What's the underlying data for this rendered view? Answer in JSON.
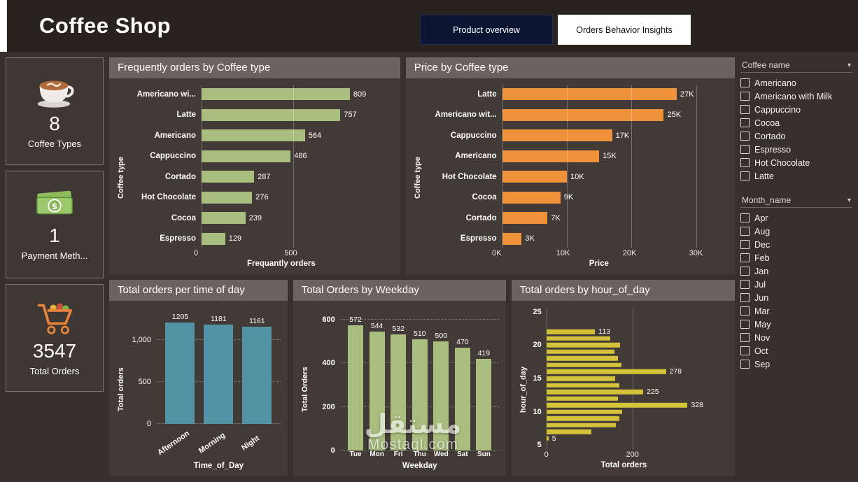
{
  "header": {
    "title": "Coffee Shop",
    "tabs": [
      {
        "label": "Product overview",
        "active": true
      },
      {
        "label": "Orders Behavior Insights",
        "active": false
      }
    ]
  },
  "kpis": [
    {
      "icon": "coffee-cup-icon",
      "value": "8",
      "label": "Coffee Types"
    },
    {
      "icon": "money-icon",
      "value": "1",
      "label": "Payment Meth..."
    },
    {
      "icon": "shopping-cart-icon",
      "value": "3547",
      "label": "Total Orders"
    }
  ],
  "chart_data": [
    {
      "type": "bar",
      "orientation": "horizontal",
      "title": "Frequently orders by Coffee type",
      "categories": [
        "Americano wi...",
        "Latte",
        "Americano",
        "Cappuccino",
        "Cortado",
        "Hot Chocolate",
        "Cocoa",
        "Espresso"
      ],
      "values": [
        809,
        757,
        564,
        486,
        287,
        276,
        239,
        129
      ],
      "labels": [
        "809",
        "757",
        "564",
        "486",
        "287",
        "276",
        "239",
        "129"
      ],
      "xlabel": "Frequantly orders",
      "ylabel": "Coffee type",
      "xticks": [
        {
          "v": 0,
          "label": "0"
        },
        {
          "v": 500,
          "label": "500"
        }
      ],
      "xmax": 900,
      "color": "#a9bd7e",
      "legend": "none",
      "grid": "vertical"
    },
    {
      "type": "bar",
      "orientation": "horizontal",
      "title": "Price by Coffee type",
      "categories": [
        "Latte",
        "Americano wit...",
        "Cappuccino",
        "Americano",
        "Hot Chocolate",
        "Cocoa",
        "Cortado",
        "Espresso"
      ],
      "values": [
        27000,
        25000,
        17000,
        15000,
        10000,
        9000,
        7000,
        3000
      ],
      "labels": [
        "27K",
        "25K",
        "17K",
        "15K",
        "10K",
        "9K",
        "7K",
        "3K"
      ],
      "xlabel": "Price",
      "ylabel": "Coffee type",
      "xticks": [
        {
          "v": 0,
          "label": "0K"
        },
        {
          "v": 10000,
          "label": "10K"
        },
        {
          "v": 20000,
          "label": "20K"
        },
        {
          "v": 30000,
          "label": "30K"
        }
      ],
      "xmax": 30800,
      "color": "#f0913c",
      "legend": "none",
      "grid": "vertical"
    },
    {
      "type": "bar",
      "orientation": "vertical",
      "title": "Total orders per time of day",
      "categories": [
        "Afternoon",
        "Morning",
        "Night"
      ],
      "values": [
        1205,
        1181,
        1161
      ],
      "labels": [
        "1205",
        "1181",
        "1161"
      ],
      "xlabel": "Time_of_Day",
      "ylabel": "Total orders",
      "yticks": [
        {
          "v": 0,
          "label": "0"
        },
        {
          "v": 500,
          "label": "500"
        },
        {
          "v": 1000,
          "label": "1,000"
        }
      ],
      "ymax": 1400,
      "color": "#5294a3",
      "legend": "none",
      "grid": "horizontal-dotted",
      "category_labels_rotated": true
    },
    {
      "type": "bar",
      "orientation": "vertical",
      "title": "Total Orders by Weekday",
      "categories": [
        "Tue",
        "Mon",
        "Fri",
        "Thu",
        "Wed",
        "Sat",
        "Sun"
      ],
      "values": [
        572,
        544,
        532,
        510,
        500,
        470,
        419
      ],
      "labels": [
        "572",
        "544",
        "532",
        "510",
        "500",
        "470",
        "419"
      ],
      "xlabel": "Weekday",
      "ylabel": "Total Orders",
      "yticks": [
        {
          "v": 0,
          "label": "0"
        },
        {
          "v": 200,
          "label": "200"
        },
        {
          "v": 400,
          "label": "400"
        },
        {
          "v": 600,
          "label": "600"
        }
      ],
      "ymax": 660,
      "color": "#a9bd7e",
      "legend": "none",
      "grid": "horizontal-dotted"
    },
    {
      "type": "bar",
      "orientation": "horizontal",
      "continuous": true,
      "title": "Total orders by hour_of_day",
      "xlabel": "Total orders",
      "ylabel": "hour_of_day",
      "yticks": [
        25,
        20,
        15,
        10,
        5
      ],
      "axis_top": 25.8,
      "axis_bottom": 4.2,
      "xticks": [
        {
          "v": 0,
          "label": "0"
        },
        {
          "v": 200,
          "label": "200"
        }
      ],
      "xmax": 360,
      "color": "#d4c23b",
      "legend": "none",
      "points": [
        {
          "hour": 22,
          "value": 113,
          "labeled": true
        },
        {
          "hour": 21,
          "value": 148,
          "labeled": false
        },
        {
          "hour": 20,
          "value": 172,
          "labeled": false
        },
        {
          "hour": 19,
          "value": 158,
          "labeled": false
        },
        {
          "hour": 18,
          "value": 166,
          "labeled": false
        },
        {
          "hour": 17,
          "value": 174,
          "labeled": false
        },
        {
          "hour": 16,
          "value": 278,
          "labeled": true
        },
        {
          "hour": 15,
          "value": 160,
          "labeled": false
        },
        {
          "hour": 14,
          "value": 170,
          "labeled": false
        },
        {
          "hour": 13,
          "value": 225,
          "labeled": true
        },
        {
          "hour": 12,
          "value": 166,
          "labeled": false
        },
        {
          "hour": 11,
          "value": 328,
          "labeled": true
        },
        {
          "hour": 10,
          "value": 176,
          "labeled": false
        },
        {
          "hour": 9,
          "value": 170,
          "labeled": false
        },
        {
          "hour": 8,
          "value": 162,
          "labeled": false
        },
        {
          "hour": 7,
          "value": 104,
          "labeled": false
        },
        {
          "hour": 6,
          "value": 5,
          "labeled": true
        }
      ]
    }
  ],
  "slicers": [
    {
      "title": "Coffee name",
      "items": [
        "Americano",
        "Americano with Milk",
        "Cappuccino",
        "Cocoa",
        "Cortado",
        "Espresso",
        "Hot Chocolate",
        "Latte"
      ]
    },
    {
      "title": "Month_name",
      "items": [
        "Apr",
        "Aug",
        "Dec",
        "Feb",
        "Jan",
        "Jul",
        "Jun",
        "Mar",
        "May",
        "Nov",
        "Oct",
        "Sep"
      ]
    }
  ],
  "watermark": {
    "arabic": "مستقل",
    "latin": "Mostaql.com"
  },
  "colors": {
    "background": "#37302d",
    "panel": "#413a36",
    "panel_header": "#6b6360",
    "green": "#a9bd7e",
    "orange": "#f0913c",
    "teal": "#5294a3",
    "yellow": "#d4c23b",
    "tab_dark": "#0c1531"
  }
}
